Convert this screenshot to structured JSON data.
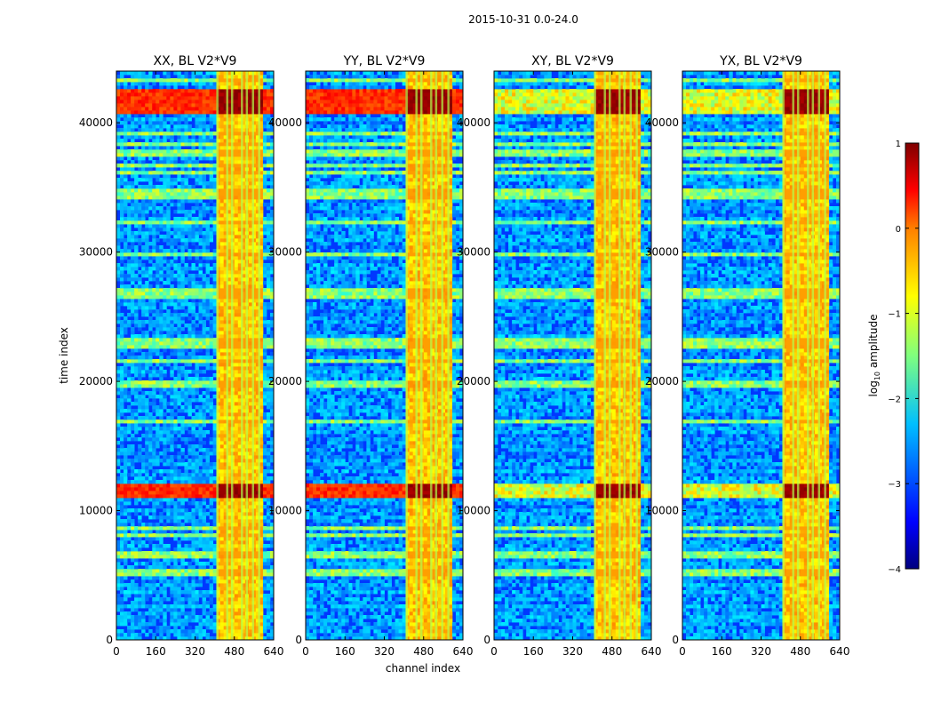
{
  "suptitle": "2015-10-31 0.0-24.0",
  "chart_data": {
    "type": "heatmap",
    "panels": [
      {
        "title": "XX, BL V2*V9",
        "name": "panel-xx"
      },
      {
        "title": "YY, BL V2*V9",
        "name": "panel-yy"
      },
      {
        "title": "XY, BL V2*V9",
        "name": "panel-xy"
      },
      {
        "title": "YX, BL V2*V9",
        "name": "panel-yx"
      }
    ],
    "xlabel": "channel index",
    "ylabel": "time index",
    "xlim": [
      0,
      640
    ],
    "ylim": [
      0,
      44000
    ],
    "xticks": [
      "0",
      "160",
      "320",
      "480",
      "640"
    ],
    "yticks": [
      "0",
      "10000",
      "20000",
      "30000",
      "40000"
    ],
    "colormap": "jet",
    "colorbar": {
      "label": "log10 amplitude",
      "label_main": "log",
      "label_sub": "10",
      "label_tail": " amplitude",
      "range": [
        -4,
        1
      ],
      "ticks": [
        "1",
        "0",
        "−1",
        "−2",
        "−3",
        "−4"
      ]
    },
    "features": {
      "bright_channel_band": [
        405,
        600
      ],
      "bright_channel_stripes": [
        410,
        450,
        470,
        510,
        530,
        555,
        580
      ],
      "strong_rfi_time_bands": [
        [
          40800,
          42500
        ],
        [
          11000,
          12200
        ]
      ],
      "moderate_time_bands": [
        [
          26400,
          27200
        ],
        [
          22600,
          23300
        ],
        [
          34000,
          35000
        ],
        [
          37500,
          38000
        ],
        [
          36500,
          36800
        ],
        [
          39000,
          39300
        ],
        [
          19600,
          20200
        ],
        [
          5000,
          5600
        ]
      ]
    }
  }
}
